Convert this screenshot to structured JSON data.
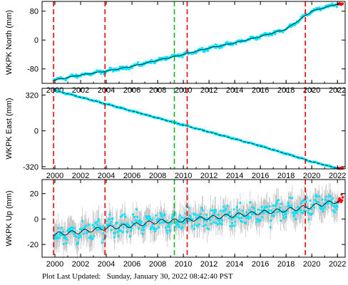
{
  "footer": {
    "prefix": "Plot Last Updated:",
    "timestamp": "Sunday, January 30, 2022 08:42:40 PST"
  },
  "colors": {
    "data_points": "#00e5ff",
    "error_bars": "#b4b4b4",
    "model_line": "#000000",
    "recent_points": "#ff0000",
    "event_line_red": "#e8000b",
    "event_line_green": "#1aaa2a",
    "axes": "#000000"
  },
  "chart_data": [
    {
      "type": "scatter",
      "ylabel": "WKPK North (mm)",
      "xlim": [
        1999.0,
        2022.6
      ],
      "ylim": [
        -120,
        107
      ],
      "yticks": [
        80,
        0,
        -80
      ],
      "xticks": [
        2000,
        2002,
        2004,
        2006,
        2008,
        2010,
        2012,
        2014,
        2016,
        2018,
        2020,
        2022
      ],
      "series": [
        {
          "x": [
            1999.9,
            2002.0,
            2004.0,
            2006.0,
            2008.0,
            2010.0,
            2012.0,
            2014.0,
            2016.0,
            2018.0,
            2020.0,
            2022.0
          ],
          "values": [
            -111,
            -97,
            -86,
            -73,
            -56,
            -40,
            -22,
            -8,
            10,
            30,
            80,
            100
          ]
        }
      ],
      "noise_mm": 4,
      "events": [
        {
          "x": 1999.9,
          "color": "red"
        },
        {
          "x": 2003.9,
          "color": "red"
        },
        {
          "x": 2009.3,
          "color": "green"
        },
        {
          "x": 2010.3,
          "color": "red"
        },
        {
          "x": 2019.5,
          "color": "red"
        }
      ],
      "grid": false
    },
    {
      "type": "scatter",
      "ylabel": "WKPK East (mm)",
      "xlim": [
        1999.0,
        2022.6
      ],
      "ylim": [
        -340,
        380
      ],
      "yticks": [
        320,
        0,
        -320
      ],
      "xticks": [
        2000,
        2002,
        2004,
        2006,
        2008,
        2010,
        2012,
        2014,
        2016,
        2018,
        2020,
        2022
      ],
      "series": [
        {
          "x": [
            1999.9,
            2004.0,
            2008.0,
            2012.0,
            2016.0,
            2020.0,
            2022.0
          ],
          "values": [
            365,
            240,
            115,
            -10,
            -135,
            -275,
            -335
          ]
        }
      ],
      "noise_mm": 5,
      "events": [
        {
          "x": 1999.9,
          "color": "red"
        },
        {
          "x": 2003.9,
          "color": "red"
        },
        {
          "x": 2009.3,
          "color": "green"
        },
        {
          "x": 2010.3,
          "color": "red"
        },
        {
          "x": 2019.5,
          "color": "red"
        }
      ],
      "grid": false
    },
    {
      "type": "scatter",
      "ylabel": "WKPK Up (mm)",
      "xlim": [
        1999.0,
        2022.6
      ],
      "ylim": [
        -30,
        31
      ],
      "yticks": [
        20,
        0,
        -20
      ],
      "xticks": [
        2000,
        2002,
        2004,
        2006,
        2008,
        2010,
        2012,
        2014,
        2016,
        2018,
        2020,
        2022
      ],
      "series": [
        {
          "x": [
            1999.9,
            2002.0,
            2004.0,
            2006.0,
            2008.0,
            2010.0,
            2012.0,
            2014.0,
            2016.0,
            2018.0,
            2020.0,
            2022.0
          ],
          "values": [
            -12,
            -10,
            -7,
            -5,
            -2,
            -1,
            1,
            3,
            5,
            7,
            10,
            14
          ]
        }
      ],
      "noise_mm": 6,
      "error_bar_mm": 8,
      "events": [
        {
          "x": 1999.9,
          "color": "red"
        },
        {
          "x": 2003.9,
          "color": "red"
        },
        {
          "x": 2009.3,
          "color": "green"
        },
        {
          "x": 2010.3,
          "color": "red"
        },
        {
          "x": 2019.5,
          "color": "red"
        }
      ],
      "grid": false
    }
  ]
}
